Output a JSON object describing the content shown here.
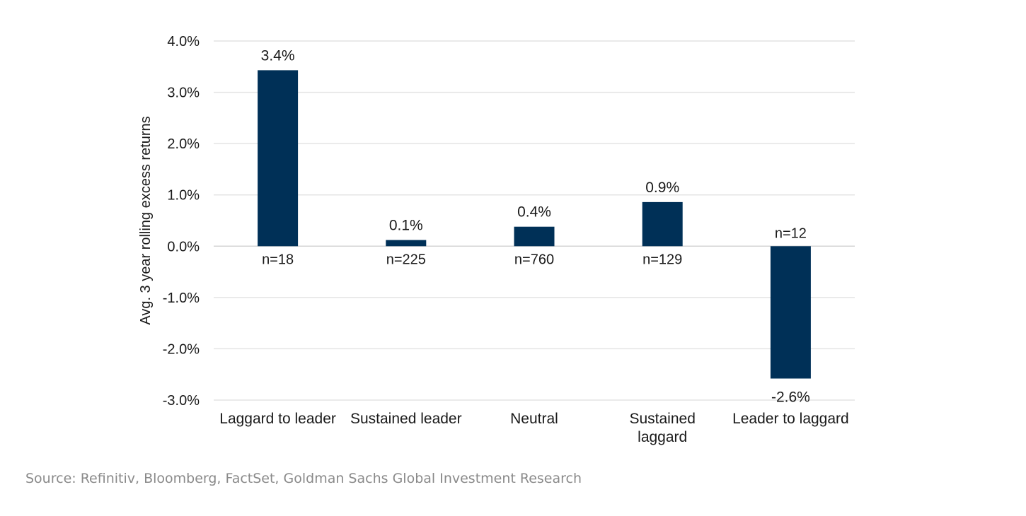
{
  "chart_data": {
    "type": "bar",
    "title": "",
    "xlabel": "",
    "ylabel": "Avg. 3 year rolling excess returns",
    "ylim": [
      -3.0,
      4.0
    ],
    "yticks": [
      4.0,
      3.0,
      2.0,
      1.0,
      0.0,
      -1.0,
      -2.0,
      -3.0
    ],
    "ytick_labels": [
      "4.0%",
      "3.0%",
      "2.0%",
      "1.0%",
      "0.0%",
      "-1.0%",
      "-2.0%",
      "-3.0%"
    ],
    "grid": true,
    "legend": "none",
    "bar_color": "#003057",
    "categories": [
      "Laggard to leader",
      "Sustained leader",
      "Neutral",
      "Sustained laggard",
      "Leader to laggard"
    ],
    "category_lines": [
      [
        "Laggard to leader"
      ],
      [
        "Sustained leader"
      ],
      [
        "Neutral"
      ],
      [
        "Sustained",
        "laggard"
      ],
      [
        "Leader to laggard"
      ]
    ],
    "values": [
      3.43,
      0.12,
      0.38,
      0.86,
      -2.58
    ],
    "value_labels": [
      "3.4%",
      "0.1%",
      "0.4%",
      "0.9%",
      "-2.6%"
    ],
    "counts": [
      "n=18",
      "n=225",
      "n=760",
      "n=129",
      "n=12"
    ]
  },
  "source": "Source: Refinitiv, Bloomberg, FactSet, Goldman Sachs Global Investment Research"
}
